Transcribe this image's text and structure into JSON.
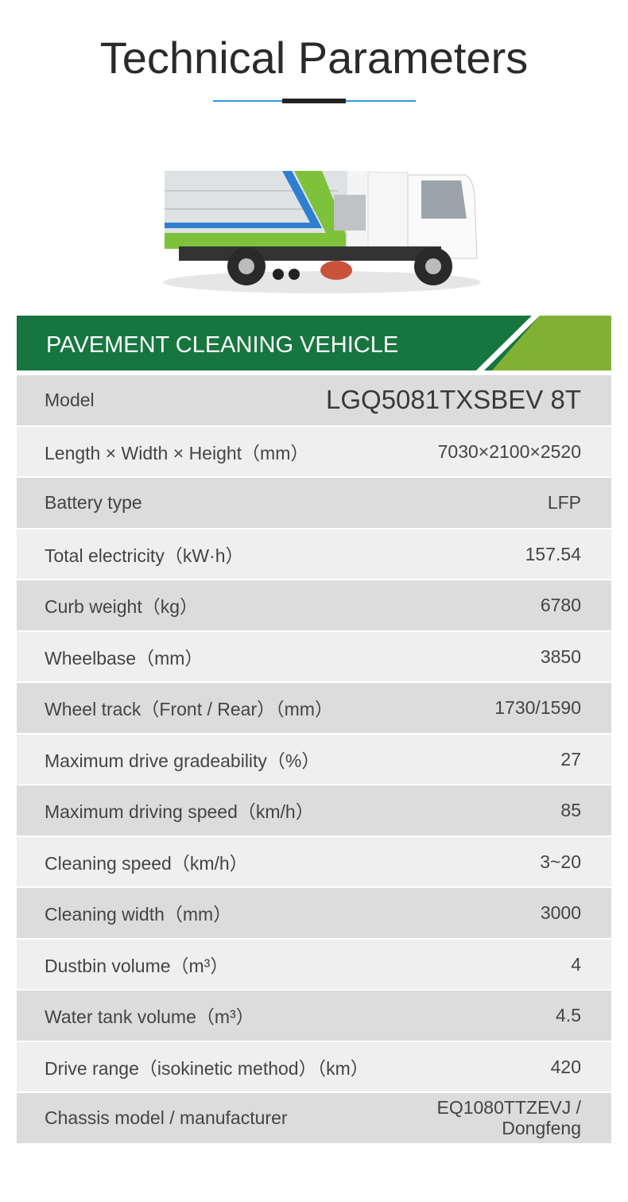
{
  "header": {
    "title": "Technical Parameters"
  },
  "colors": {
    "dark_green": "#17763f",
    "light_green": "#80b135",
    "accent_blue": "#2b9be0"
  },
  "banner": {
    "title": "PAVEMENT CLEANING VEHICLE"
  },
  "specs": [
    {
      "label": "Model",
      "value": "LGQ5081TXSBEV 8T"
    },
    {
      "label": "Length × Width × Height（mm）",
      "value": "7030×2100×2520"
    },
    {
      "label": "Battery type",
      "value": "LFP"
    },
    {
      "label": "Total electricity（kW·h）",
      "value": "157.54"
    },
    {
      "label": "Curb weight（kg）",
      "value": "6780"
    },
    {
      "label": "Wheelbase（mm）",
      "value": "3850"
    },
    {
      "label": "Wheel track（Front / Rear）（mm）",
      "value": "1730/1590"
    },
    {
      "label": "Maximum drive gradeability（%）",
      "value": "27"
    },
    {
      "label": "Maximum driving speed（km/h）",
      "value": "85"
    },
    {
      "label": "Cleaning speed（km/h）",
      "value": "3~20"
    },
    {
      "label": "Cleaning width（mm）",
      "value": "3000"
    },
    {
      "label": "Dustbin volume（m³）",
      "value": "4"
    },
    {
      "label": "Water tank volume（m³）",
      "value": "4.5"
    },
    {
      "label": "Drive range（isokinetic method）（km）",
      "value": "420"
    },
    {
      "label": "Chassis model / manufacturer",
      "value": "EQ1080TTZEVJ / Dongfeng"
    }
  ]
}
